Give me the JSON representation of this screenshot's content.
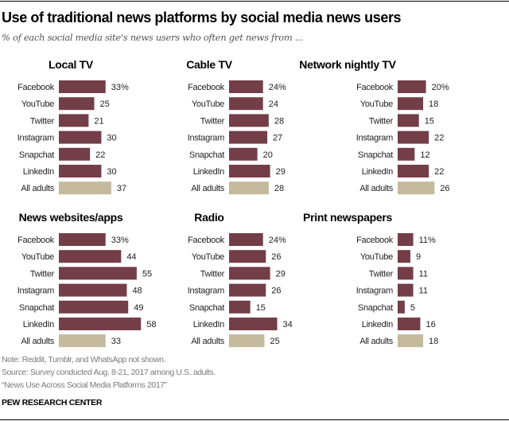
{
  "title": "Use of traditional news platforms by social media news users",
  "subtitle": "% of each social media site's news users who often get news from ...",
  "colors": {
    "social": "#733e48",
    "all_adults": "#c3b99c"
  },
  "chart_data": [
    {
      "type": "bar",
      "title": "Local TV",
      "categories": [
        "Facebook",
        "YouTube",
        "Twitter",
        "Instagram",
        "Snapchat",
        "LinkedIn",
        "All adults"
      ],
      "values": [
        33,
        25,
        21,
        30,
        22,
        30,
        37
      ]
    },
    {
      "type": "bar",
      "title": "Cable TV",
      "categories": [
        "Facebook",
        "YouTube",
        "Twitter",
        "Instagram",
        "Snapchat",
        "LinkedIn",
        "All adults"
      ],
      "values": [
        24,
        24,
        28,
        27,
        20,
        29,
        28
      ]
    },
    {
      "type": "bar",
      "title": "Network nightly TV",
      "categories": [
        "Facebook",
        "YouTube",
        "Twitter",
        "Instagram",
        "Snapchat",
        "LinkedIn",
        "All adults"
      ],
      "values": [
        20,
        18,
        15,
        22,
        12,
        22,
        26
      ]
    },
    {
      "type": "bar",
      "title": "News websites/apps",
      "categories": [
        "Facebook",
        "YouTube",
        "Twitter",
        "Instagram",
        "Snapchat",
        "LinkedIn",
        "All adults"
      ],
      "values": [
        33,
        44,
        55,
        48,
        49,
        58,
        33
      ]
    },
    {
      "type": "bar",
      "title": "Radio",
      "categories": [
        "Facebook",
        "YouTube",
        "Twitter",
        "Instagram",
        "Snapchat",
        "LinkedIn",
        "All adults"
      ],
      "values": [
        24,
        26,
        29,
        26,
        15,
        34,
        25
      ]
    },
    {
      "type": "bar",
      "title": "Print newspapers",
      "categories": [
        "Facebook",
        "YouTube",
        "Twitter",
        "Instagram",
        "Snapchat",
        "LinkedIn",
        "All adults"
      ],
      "values": [
        11,
        9,
        11,
        11,
        5,
        16,
        18
      ]
    }
  ],
  "footer": {
    "note": "Note: Reddit, Tumblr, and WhatsApp not shown.",
    "source": "Source: Survey conducted Aug. 8-21, 2017 among U.S. adults.",
    "report": "“News Use Across Social Media Platforms 2017”",
    "brand": "PEW RESEARCH CENTER"
  }
}
